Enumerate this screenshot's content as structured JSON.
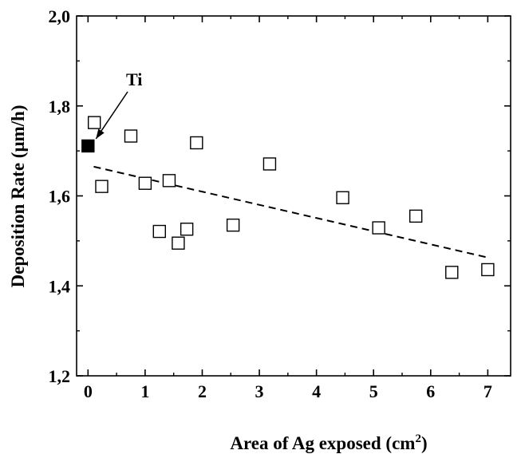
{
  "chart_data": {
    "type": "scatter",
    "xlabel": "Area of Ag exposed (cm",
    "xlabel_sup": "2",
    "xlabel_close": ")",
    "ylabel": "Deposition Rate (μm/h)",
    "xlim": [
      -0.2,
      7.4
    ],
    "ylim": [
      1.2,
      2.0
    ],
    "x_ticks": [
      0,
      1,
      2,
      3,
      4,
      5,
      6,
      7
    ],
    "x_tick_labels": [
      "0",
      "1",
      "2",
      "3",
      "4",
      "5",
      "6",
      "7"
    ],
    "y_ticks": [
      1.2,
      1.4,
      1.6,
      1.8,
      2.0
    ],
    "y_tick_labels": [
      "1,2",
      "1,4",
      "1,6",
      "1,8",
      "2,0"
    ],
    "grid": false,
    "series": [
      {
        "marker": "open-square",
        "points": [
          {
            "x": 0.11,
            "y": 1.763
          },
          {
            "x": 0.24,
            "y": 1.621
          },
          {
            "x": 0.75,
            "y": 1.733
          },
          {
            "x": 1.0,
            "y": 1.628
          },
          {
            "x": 1.25,
            "y": 1.521
          },
          {
            "x": 1.42,
            "y": 1.634
          },
          {
            "x": 1.58,
            "y": 1.495
          },
          {
            "x": 1.73,
            "y": 1.526
          },
          {
            "x": 1.9,
            "y": 1.718
          },
          {
            "x": 2.54,
            "y": 1.535
          },
          {
            "x": 3.18,
            "y": 1.671
          },
          {
            "x": 4.46,
            "y": 1.596
          },
          {
            "x": 5.09,
            "y": 1.529
          },
          {
            "x": 5.74,
            "y": 1.555
          },
          {
            "x": 6.37,
            "y": 1.43
          },
          {
            "x": 7.0,
            "y": 1.436
          }
        ]
      },
      {
        "marker": "filled-square",
        "points": [
          {
            "x": 0.0,
            "y": 1.711
          }
        ]
      }
    ],
    "fit_line": {
      "style": "dashed",
      "x": [
        0.1,
        7.0
      ],
      "y": [
        1.665,
        1.463
      ]
    },
    "annotations": [
      {
        "text": "Ti",
        "arrow_to": {
          "x": 0.0,
          "y": 1.711
        }
      }
    ]
  }
}
